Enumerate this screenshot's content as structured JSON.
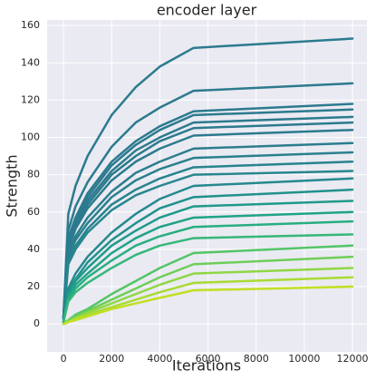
{
  "chart_data": {
    "type": "line",
    "title": "encoder layer",
    "x_label": "Iterations",
    "y_label": "Strength",
    "x": [
      0,
      200,
      500,
      1000,
      2000,
      3000,
      4000,
      5400,
      12000
    ],
    "series": [
      {
        "color": "#2c7a8e",
        "values": [
          4,
          59,
          74,
          90,
          112,
          127,
          138,
          148,
          153
        ]
      },
      {
        "color": "#2c7a8e",
        "values": [
          4,
          50,
          63,
          76,
          95,
          108,
          116,
          125,
          129
        ]
      },
      {
        "color": "#2c7a8e",
        "values": [
          3,
          46,
          57,
          70,
          87,
          98,
          106,
          114,
          118
        ]
      },
      {
        "color": "#2c7a8e",
        "values": [
          3,
          45,
          56,
          68,
          85,
          96,
          104,
          112,
          115
        ]
      },
      {
        "color": "#2c7a8e",
        "values": [
          3,
          43,
          54,
          66,
          82,
          93,
          100,
          108,
          111
        ]
      },
      {
        "color": "#2c7a8e",
        "values": [
          3,
          42,
          53,
          64,
          80,
          90,
          98,
          105,
          108
        ]
      },
      {
        "color": "#2c7a8e",
        "values": [
          3,
          40,
          51,
          62,
          77,
          87,
          94,
          101,
          104
        ]
      },
      {
        "color": "#2b7d8e",
        "values": [
          3,
          38,
          47,
          57,
          71,
          81,
          87,
          94,
          97
        ]
      },
      {
        "color": "#2a808e",
        "values": [
          3,
          36,
          45,
          54,
          68,
          77,
          83,
          89,
          92
        ]
      },
      {
        "color": "#28838e",
        "values": [
          3,
          34,
          42,
          51,
          64,
          72,
          78,
          84,
          87
        ]
      },
      {
        "color": "#27868e",
        "values": [
          2,
          32,
          40,
          49,
          61,
          69,
          74,
          80,
          82
        ]
      },
      {
        "color": "#25898e",
        "values": [
          1,
          19,
          27,
          36,
          49,
          59,
          67,
          74,
          78
        ]
      },
      {
        "color": "#21918c",
        "values": [
          1,
          17,
          24,
          33,
          45,
          54,
          62,
          68,
          72
        ]
      },
      {
        "color": "#1f9a8a",
        "values": [
          1,
          16,
          23,
          30,
          42,
          50,
          57,
          63,
          66
        ]
      },
      {
        "color": "#20a386",
        "values": [
          1,
          14,
          21,
          27,
          38,
          46,
          52,
          57,
          60
        ]
      },
      {
        "color": "#28ae80",
        "values": [
          1,
          13,
          19,
          25,
          34,
          42,
          47,
          52,
          55
        ]
      },
      {
        "color": "#35b779",
        "values": [
          1,
          12,
          17,
          22,
          30,
          37,
          42,
          46,
          48
        ]
      },
      {
        "color": "#54c568",
        "values": [
          0,
          2,
          5,
          8,
          16,
          23,
          30,
          38,
          42
        ]
      },
      {
        "color": "#6ece58",
        "values": [
          0,
          2,
          4,
          7,
          13,
          19,
          25,
          32,
          36
        ]
      },
      {
        "color": "#8fd744",
        "values": [
          0,
          1,
          3,
          6,
          11,
          16,
          21,
          27,
          30
        ]
      },
      {
        "color": "#a8db34",
        "values": [
          0,
          1,
          3,
          5,
          9,
          13,
          17,
          22,
          25
        ]
      },
      {
        "color": "#c2df23",
        "values": [
          0,
          1,
          2,
          4,
          8,
          11,
          14,
          18,
          20
        ]
      }
    ],
    "xlim": [
      -680,
      12600
    ],
    "ylim": [
      -15,
      163
    ],
    "xticks": [
      0,
      2000,
      4000,
      6000,
      8000,
      10000,
      12000
    ],
    "yticks": [
      0,
      20,
      40,
      60,
      80,
      100,
      120,
      140,
      160
    ],
    "grid": true
  }
}
